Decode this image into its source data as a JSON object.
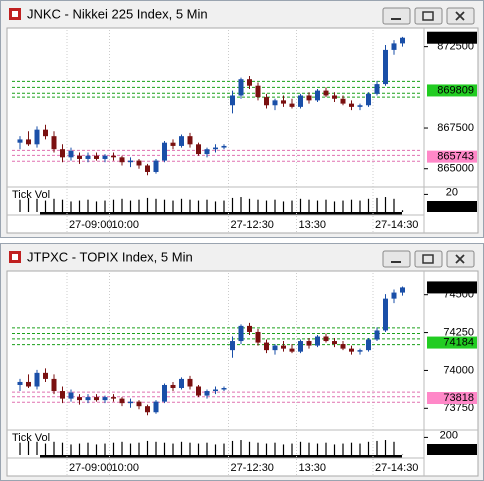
{
  "chart_data": [
    {
      "type": "candlestick",
      "title": "JNKC - Nikkei 225 Index, 5 Min",
      "categories": [
        null,
        null,
        null,
        null,
        null,
        null,
        "27-09:00",
        null,
        null,
        null,
        null,
        "10:00",
        null,
        null,
        null,
        null,
        null,
        null,
        null,
        null,
        null,
        null,
        null,
        null,
        null,
        "27-12:30",
        null,
        null,
        null,
        null,
        null,
        null,
        null,
        "13:30",
        null,
        null,
        null,
        null,
        null,
        null,
        null,
        null,
        "27-14:30",
        null,
        null,
        null
      ],
      "open": [
        866600,
        866800,
        866500,
        867400,
        867000,
        866200,
        865700,
        865800,
        865600,
        865800,
        865600,
        865800,
        865700,
        865400,
        865500,
        865200,
        864800,
        865500,
        866600,
        866400,
        867000,
        866500,
        865900,
        866200,
        866300,
        868900,
        869500,
        870500,
        870100,
        869400,
        868900,
        869200,
        869000,
        868800,
        869500,
        869200,
        869800,
        869500,
        869300,
        869000,
        868800,
        868900,
        869600,
        870200,
        872300,
        872700
      ],
      "high": [
        867000,
        867300,
        867600,
        867700,
        867300,
        866500,
        866300,
        866000,
        866000,
        866000,
        865900,
        866000,
        865800,
        865700,
        865600,
        865300,
        865600,
        866700,
        866800,
        867100,
        867200,
        866600,
        866300,
        866500,
        866500,
        869800,
        870600,
        870700,
        870300,
        869600,
        869300,
        869500,
        869300,
        869600,
        869700,
        869900,
        870000,
        869700,
        869500,
        869200,
        869000,
        869700,
        870400,
        872600,
        872900,
        873100
      ],
      "low": [
        866200,
        866400,
        866300,
        866800,
        866000,
        865400,
        865500,
        865300,
        865400,
        865500,
        865400,
        865500,
        865200,
        865100,
        865000,
        864600,
        864700,
        865400,
        866200,
        866300,
        866300,
        865800,
        865700,
        866000,
        866200,
        868400,
        869300,
        869900,
        869200,
        868700,
        868600,
        868800,
        868700,
        868700,
        869000,
        869100,
        869400,
        869100,
        868900,
        868600,
        868600,
        868800,
        869500,
        870100,
        872000,
        872500
      ],
      "close": [
        866800,
        866500,
        867400,
        867000,
        866200,
        865700,
        866100,
        865600,
        865800,
        865600,
        865800,
        865700,
        865400,
        865500,
        865200,
        864800,
        865500,
        866600,
        866400,
        867000,
        866500,
        865900,
        866200,
        866300,
        866400,
        869500,
        870500,
        870100,
        869400,
        868900,
        869200,
        869000,
        868800,
        869500,
        869200,
        869800,
        869500,
        869300,
        869000,
        868800,
        868900,
        869600,
        870200,
        872300,
        872700,
        873049
      ],
      "up_color": "#1a4fa8",
      "down_color": "#7a1010",
      "ylim": [
        864000,
        873400
      ],
      "yticks": [
        865000,
        867500,
        872500
      ],
      "levels": [
        {
          "value": 870370,
          "color": "#1aa01a"
        },
        {
          "value": 870000,
          "color": "#1aa01a"
        },
        {
          "value": 869640,
          "color": "#1aa01a"
        },
        {
          "value": 869400,
          "color": "#1aa01a"
        },
        {
          "value": 866130,
          "color": "#e070b0"
        },
        {
          "value": 865820,
          "color": "#e070b0"
        },
        {
          "value": 865460,
          "color": "#e070b0"
        }
      ],
      "markers": [
        {
          "value": 869809,
          "color": "#22cc22"
        },
        {
          "value": 865743,
          "color": "#ff88c8"
        }
      ],
      "volume_label": "Tick Vol",
      "volume": [
        14,
        16,
        15,
        13,
        15,
        14,
        12,
        13,
        14,
        12,
        13,
        14,
        15,
        13,
        14,
        16,
        15,
        14,
        13,
        15,
        14,
        13,
        14,
        12,
        13,
        16,
        17,
        15,
        14,
        13,
        14,
        12,
        13,
        15,
        14,
        13,
        14,
        12,
        13,
        14,
        13,
        15,
        16,
        17,
        15,
        2
      ],
      "volume_ylim": [
        0,
        25
      ],
      "volume_ticks": [
        20
      ]
    },
    {
      "type": "candlestick",
      "title": "JTPXC - TOPIX Index, 5 Min",
      "categories": [
        null,
        null,
        null,
        null,
        null,
        null,
        "27-09:00",
        null,
        null,
        null,
        null,
        "10:00",
        null,
        null,
        null,
        null,
        null,
        null,
        null,
        null,
        null,
        null,
        null,
        null,
        null,
        "27-12:30",
        null,
        null,
        null,
        null,
        null,
        null,
        null,
        "13:30",
        null,
        null,
        null,
        null,
        null,
        null,
        null,
        null,
        "27-14:30",
        null,
        null,
        null
      ],
      "open": [
        73904,
        73924,
        73894,
        73984,
        73944,
        73864,
        73814,
        73824,
        73804,
        73824,
        73804,
        73824,
        73814,
        73784,
        73794,
        73764,
        73724,
        73794,
        73904,
        73884,
        73944,
        73894,
        73834,
        73864,
        73874,
        74134,
        74194,
        74294,
        74254,
        74184,
        74134,
        74164,
        74144,
        74124,
        74194,
        74164,
        74224,
        74194,
        74174,
        74144,
        74124,
        74134,
        74204,
        74264,
        74474,
        74514
      ],
      "high": [
        73944,
        73974,
        74004,
        74014,
        73974,
        73894,
        73874,
        73844,
        73844,
        73844,
        73834,
        73844,
        73824,
        73814,
        73804,
        73774,
        73804,
        73914,
        73924,
        73954,
        73964,
        73904,
        73874,
        73894,
        73894,
        74224,
        74304,
        74314,
        74274,
        74204,
        74174,
        74194,
        74174,
        74204,
        74214,
        74234,
        74244,
        74214,
        74194,
        74164,
        74144,
        74214,
        74284,
        74504,
        74534,
        74554
      ],
      "low": [
        73864,
        73884,
        73874,
        73924,
        73844,
        73784,
        73794,
        73774,
        73784,
        73794,
        73784,
        73794,
        73764,
        73754,
        73744,
        73704,
        73714,
        73784,
        73864,
        73874,
        73874,
        73824,
        73814,
        73844,
        73864,
        74084,
        74174,
        74234,
        74164,
        74114,
        74104,
        74124,
        74114,
        74114,
        74144,
        74154,
        74184,
        74154,
        74134,
        74104,
        74104,
        74124,
        74194,
        74254,
        74444,
        74494
      ],
      "close": [
        73924,
        73894,
        73984,
        73944,
        73864,
        73814,
        73854,
        73804,
        73824,
        73804,
        73824,
        73814,
        73784,
        73794,
        73764,
        73724,
        73794,
        73904,
        73884,
        73944,
        73894,
        73834,
        73864,
        73874,
        73884,
        74194,
        74294,
        74254,
        74184,
        74134,
        74164,
        74144,
        74124,
        74194,
        74164,
        74224,
        74194,
        74174,
        74144,
        74124,
        74134,
        74204,
        74264,
        74474,
        74514,
        74548
      ],
      "up_color": "#1a4fa8",
      "down_color": "#7a1010",
      "ylim": [
        73620,
        74630
      ],
      "yticks": [
        73750,
        74000,
        74250,
        74500
      ],
      "levels": [
        {
          "value": 74281,
          "color": "#1aa01a"
        },
        {
          "value": 74244,
          "color": "#1aa01a"
        },
        {
          "value": 74208,
          "color": "#1aa01a"
        },
        {
          "value": 74170,
          "color": "#1aa01a"
        },
        {
          "value": 73857,
          "color": "#e070b0"
        },
        {
          "value": 73826,
          "color": "#e070b0"
        },
        {
          "value": 73790,
          "color": "#e070b0"
        }
      ],
      "markers": [
        {
          "value": 74184,
          "color": "#22cc22"
        },
        {
          "value": 73818,
          "color": "#ff88c8"
        }
      ],
      "volume_label": "Tick Vol",
      "volume": [
        140,
        160,
        150,
        130,
        150,
        140,
        120,
        130,
        140,
        120,
        130,
        140,
        150,
        130,
        140,
        160,
        150,
        140,
        130,
        150,
        140,
        130,
        140,
        120,
        130,
        160,
        170,
        150,
        140,
        130,
        140,
        120,
        130,
        150,
        140,
        130,
        140,
        120,
        130,
        140,
        130,
        150,
        160,
        170,
        150,
        4
      ],
      "volume_ylim": [
        0,
        250
      ],
      "volume_ticks": [
        200
      ]
    }
  ]
}
